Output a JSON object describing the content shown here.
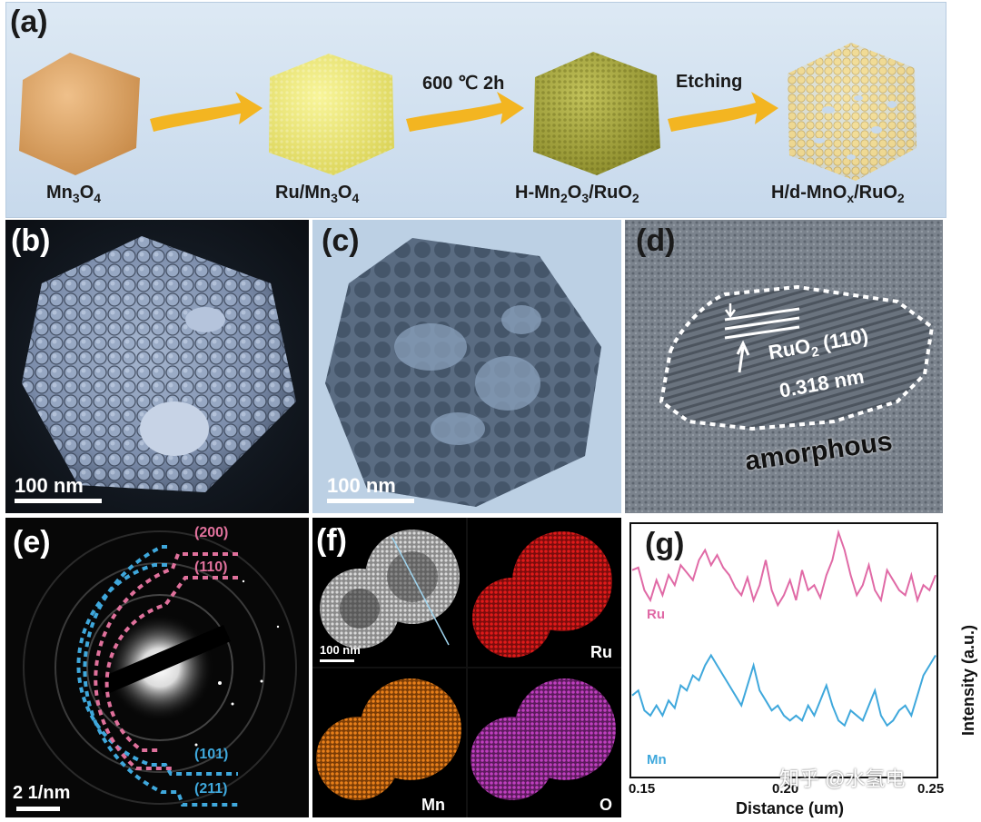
{
  "panels": {
    "a": "(a)",
    "b": "(b)",
    "c": "(c)",
    "d": "(d)",
    "e": "(e)",
    "f": "(f)",
    "g": "(g)"
  },
  "scheme": {
    "stage1": {
      "main": "Mn",
      "s1": "3",
      "mid": "O",
      "s2": "4"
    },
    "stage2": {
      "pre": "Ru/Mn",
      "s1": "3",
      "mid": "O",
      "s2": "4"
    },
    "stage3": {
      "pre": "H-Mn",
      "s1": "2",
      "mid": "O",
      "s2": "3",
      "mid2": "/RuO",
      "s3": "2"
    },
    "stage4": {
      "pre": "H/d-MnO",
      "s1": "x",
      "mid": "/RuO",
      "s2": "2"
    },
    "arrow2_label": "600 ℃ 2h",
    "arrow3_label": "Etching",
    "colors": {
      "mn3o4": "#d9a060",
      "ru_mn3o4": "#efeb7a",
      "h_mn2o3": "#a8a83a",
      "etched": "#eedc9a",
      "arrow": "#f3b521"
    }
  },
  "sem": {
    "scalebar": "100 nm"
  },
  "tem": {
    "scalebar": "100 nm"
  },
  "hrtem": {
    "phase": "RuO",
    "phase_sub": "2",
    "plane": " (110)",
    "spacing": "0.318 nm",
    "region": "amorphous"
  },
  "saed": {
    "scalebar": "2 1/nm",
    "rings": [
      "(200)",
      "(110)",
      "(101)",
      "(211)"
    ],
    "colors": {
      "ruo2": "#e0719c",
      "mno": "#3fa8dc"
    }
  },
  "eds": {
    "scalebar": "100 nm",
    "maps": [
      "Ru",
      "Mn",
      "O"
    ],
    "colors": {
      "ru": "#e01a1a",
      "mn": "#e87f1a",
      "o": "#bf3fbf"
    }
  },
  "line_profile": {
    "watermark": "知乎 @水氢电",
    "chart_data": {
      "type": "line",
      "xlabel": "Distance (um)",
      "ylabel": "Intensity (a.u.)",
      "x_ticks": [
        "0.15",
        "0.20",
        "0.25"
      ],
      "xlim": [
        0.15,
        0.25
      ],
      "series": [
        {
          "name": "Ru",
          "color": "#e06aa6",
          "x": [
            0.15,
            0.152,
            0.154,
            0.156,
            0.158,
            0.16,
            0.162,
            0.164,
            0.166,
            0.168,
            0.17,
            0.172,
            0.174,
            0.176,
            0.178,
            0.18,
            0.182,
            0.184,
            0.186,
            0.188,
            0.19,
            0.192,
            0.194,
            0.196,
            0.198,
            0.2,
            0.202,
            0.204,
            0.206,
            0.208,
            0.21,
            0.212,
            0.214,
            0.216,
            0.218,
            0.22,
            0.222,
            0.224,
            0.226,
            0.228,
            0.23,
            0.232,
            0.234,
            0.236,
            0.238,
            0.24,
            0.242,
            0.244,
            0.246,
            0.248,
            0.25
          ],
          "values": [
            0.82,
            0.83,
            0.74,
            0.7,
            0.78,
            0.72,
            0.8,
            0.76,
            0.84,
            0.81,
            0.78,
            0.86,
            0.9,
            0.84,
            0.88,
            0.83,
            0.8,
            0.75,
            0.72,
            0.79,
            0.7,
            0.76,
            0.86,
            0.74,
            0.68,
            0.72,
            0.78,
            0.7,
            0.82,
            0.74,
            0.76,
            0.71,
            0.8,
            0.86,
            0.97,
            0.9,
            0.8,
            0.72,
            0.76,
            0.84,
            0.74,
            0.7,
            0.82,
            0.78,
            0.74,
            0.72,
            0.8,
            0.7,
            0.76,
            0.74,
            0.8
          ]
        },
        {
          "name": "Mn",
          "color": "#3fa8dc",
          "x": [
            0.15,
            0.152,
            0.154,
            0.156,
            0.158,
            0.16,
            0.162,
            0.164,
            0.166,
            0.168,
            0.17,
            0.172,
            0.174,
            0.176,
            0.178,
            0.18,
            0.182,
            0.184,
            0.186,
            0.188,
            0.19,
            0.192,
            0.194,
            0.196,
            0.198,
            0.2,
            0.202,
            0.204,
            0.206,
            0.208,
            0.21,
            0.212,
            0.214,
            0.216,
            0.218,
            0.22,
            0.222,
            0.224,
            0.226,
            0.228,
            0.23,
            0.232,
            0.234,
            0.236,
            0.238,
            0.24,
            0.242,
            0.244,
            0.246,
            0.248,
            0.25
          ],
          "values": [
            0.32,
            0.34,
            0.26,
            0.24,
            0.28,
            0.24,
            0.3,
            0.27,
            0.36,
            0.34,
            0.4,
            0.38,
            0.44,
            0.48,
            0.44,
            0.4,
            0.36,
            0.32,
            0.28,
            0.36,
            0.44,
            0.34,
            0.3,
            0.26,
            0.28,
            0.24,
            0.22,
            0.24,
            0.22,
            0.28,
            0.24,
            0.3,
            0.36,
            0.28,
            0.22,
            0.2,
            0.26,
            0.24,
            0.22,
            0.28,
            0.34,
            0.24,
            0.2,
            0.22,
            0.26,
            0.28,
            0.24,
            0.32,
            0.4,
            0.44,
            0.48
          ]
        }
      ]
    }
  }
}
